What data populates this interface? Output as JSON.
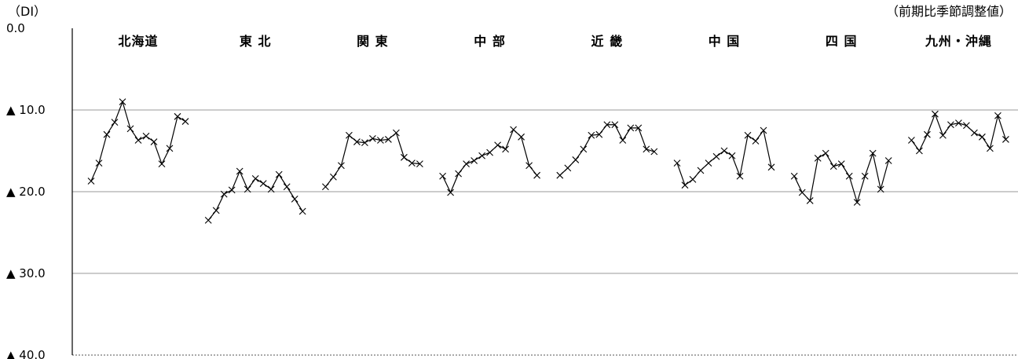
{
  "chart_data": {
    "type": "line",
    "title": "",
    "unit_label": "（DI）",
    "note": "（前期比季節調整値）",
    "ylim": [
      0,
      -40
    ],
    "y_ticks": [
      {
        "value": 0,
        "label": "0.0"
      },
      {
        "value": -10,
        "label": "▲ 10.0"
      },
      {
        "value": -20,
        "label": "▲ 20.0"
      },
      {
        "value": -30,
        "label": "▲ 30.0"
      },
      {
        "value": -40,
        "label": "▲ 40.0"
      }
    ],
    "grid": true,
    "series": [
      {
        "name": "北海道",
        "values": [
          -18.7,
          -16.5,
          -13.0,
          -11.5,
          -9.0,
          -12.3,
          -13.7,
          -13.2,
          -13.9,
          -16.6,
          -14.7,
          -10.8,
          -11.4
        ]
      },
      {
        "name": "東 北",
        "values": [
          -23.5,
          -22.3,
          -20.3,
          -19.8,
          -17.5,
          -19.7,
          -18.4,
          -19.0,
          -19.7,
          -17.9,
          -19.4,
          -20.9,
          -22.4
        ]
      },
      {
        "name": "関 東",
        "values": [
          -19.4,
          -18.2,
          -16.8,
          -13.1,
          -13.9,
          -14.0,
          -13.5,
          -13.7,
          -13.6,
          -12.8,
          -15.8,
          -16.5,
          -16.6
        ]
      },
      {
        "name": "中 部",
        "values": [
          -18.1,
          -20.1,
          -17.8,
          -16.6,
          -16.2,
          -15.6,
          -15.2,
          -14.3,
          -14.8,
          -12.4,
          -13.3,
          -16.8,
          -18.0
        ]
      },
      {
        "name": "近 畿",
        "values": [
          -18.0,
          -17.1,
          -16.1,
          -14.8,
          -13.1,
          -13.0,
          -11.8,
          -11.8,
          -13.7,
          -12.2,
          -12.2,
          -14.8,
          -15.1
        ]
      },
      {
        "name": "中 国",
        "values": [
          -16.5,
          -19.2,
          -18.5,
          -17.4,
          -16.5,
          -15.7,
          -15.0,
          -15.6,
          -18.1,
          -13.1,
          -13.8,
          -12.5,
          -17.0
        ]
      },
      {
        "name": "四 国",
        "values": [
          -18.1,
          -20.1,
          -21.1,
          -15.9,
          -15.3,
          -16.9,
          -16.6,
          -18.1,
          -21.3,
          -18.1,
          -15.3,
          -19.7,
          -16.2
        ]
      },
      {
        "name": "九州・沖縄",
        "values": [
          -13.7,
          -15.0,
          -13.0,
          -10.5,
          -13.1,
          -11.8,
          -11.6,
          -11.9,
          -12.8,
          -13.3,
          -14.7,
          -10.7,
          -13.6
        ]
      }
    ]
  }
}
